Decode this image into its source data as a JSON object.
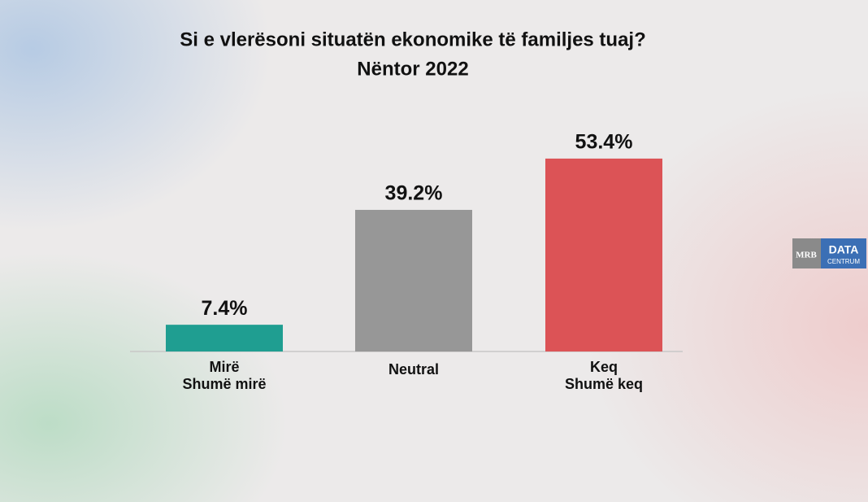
{
  "chart_data": {
    "type": "bar",
    "title": "Si e vlerësoni situatën ekonomike të familjes tuaj?",
    "subtitle": "Nëntor 2022",
    "categories": [
      [
        "Mirë",
        "Shumë mirë"
      ],
      [
        "Neutral"
      ],
      [
        "Keq",
        "Shumë keq"
      ]
    ],
    "values": [
      7.4,
      39.2,
      53.4
    ],
    "value_labels": [
      "7.4%",
      "39.2%",
      "53.4%"
    ],
    "colors": [
      "#1f9e91",
      "#979797",
      "#dc5356"
    ]
  },
  "logo": {
    "left": "MRB",
    "right": "DATA",
    "right_sub": "CENTRUM"
  }
}
